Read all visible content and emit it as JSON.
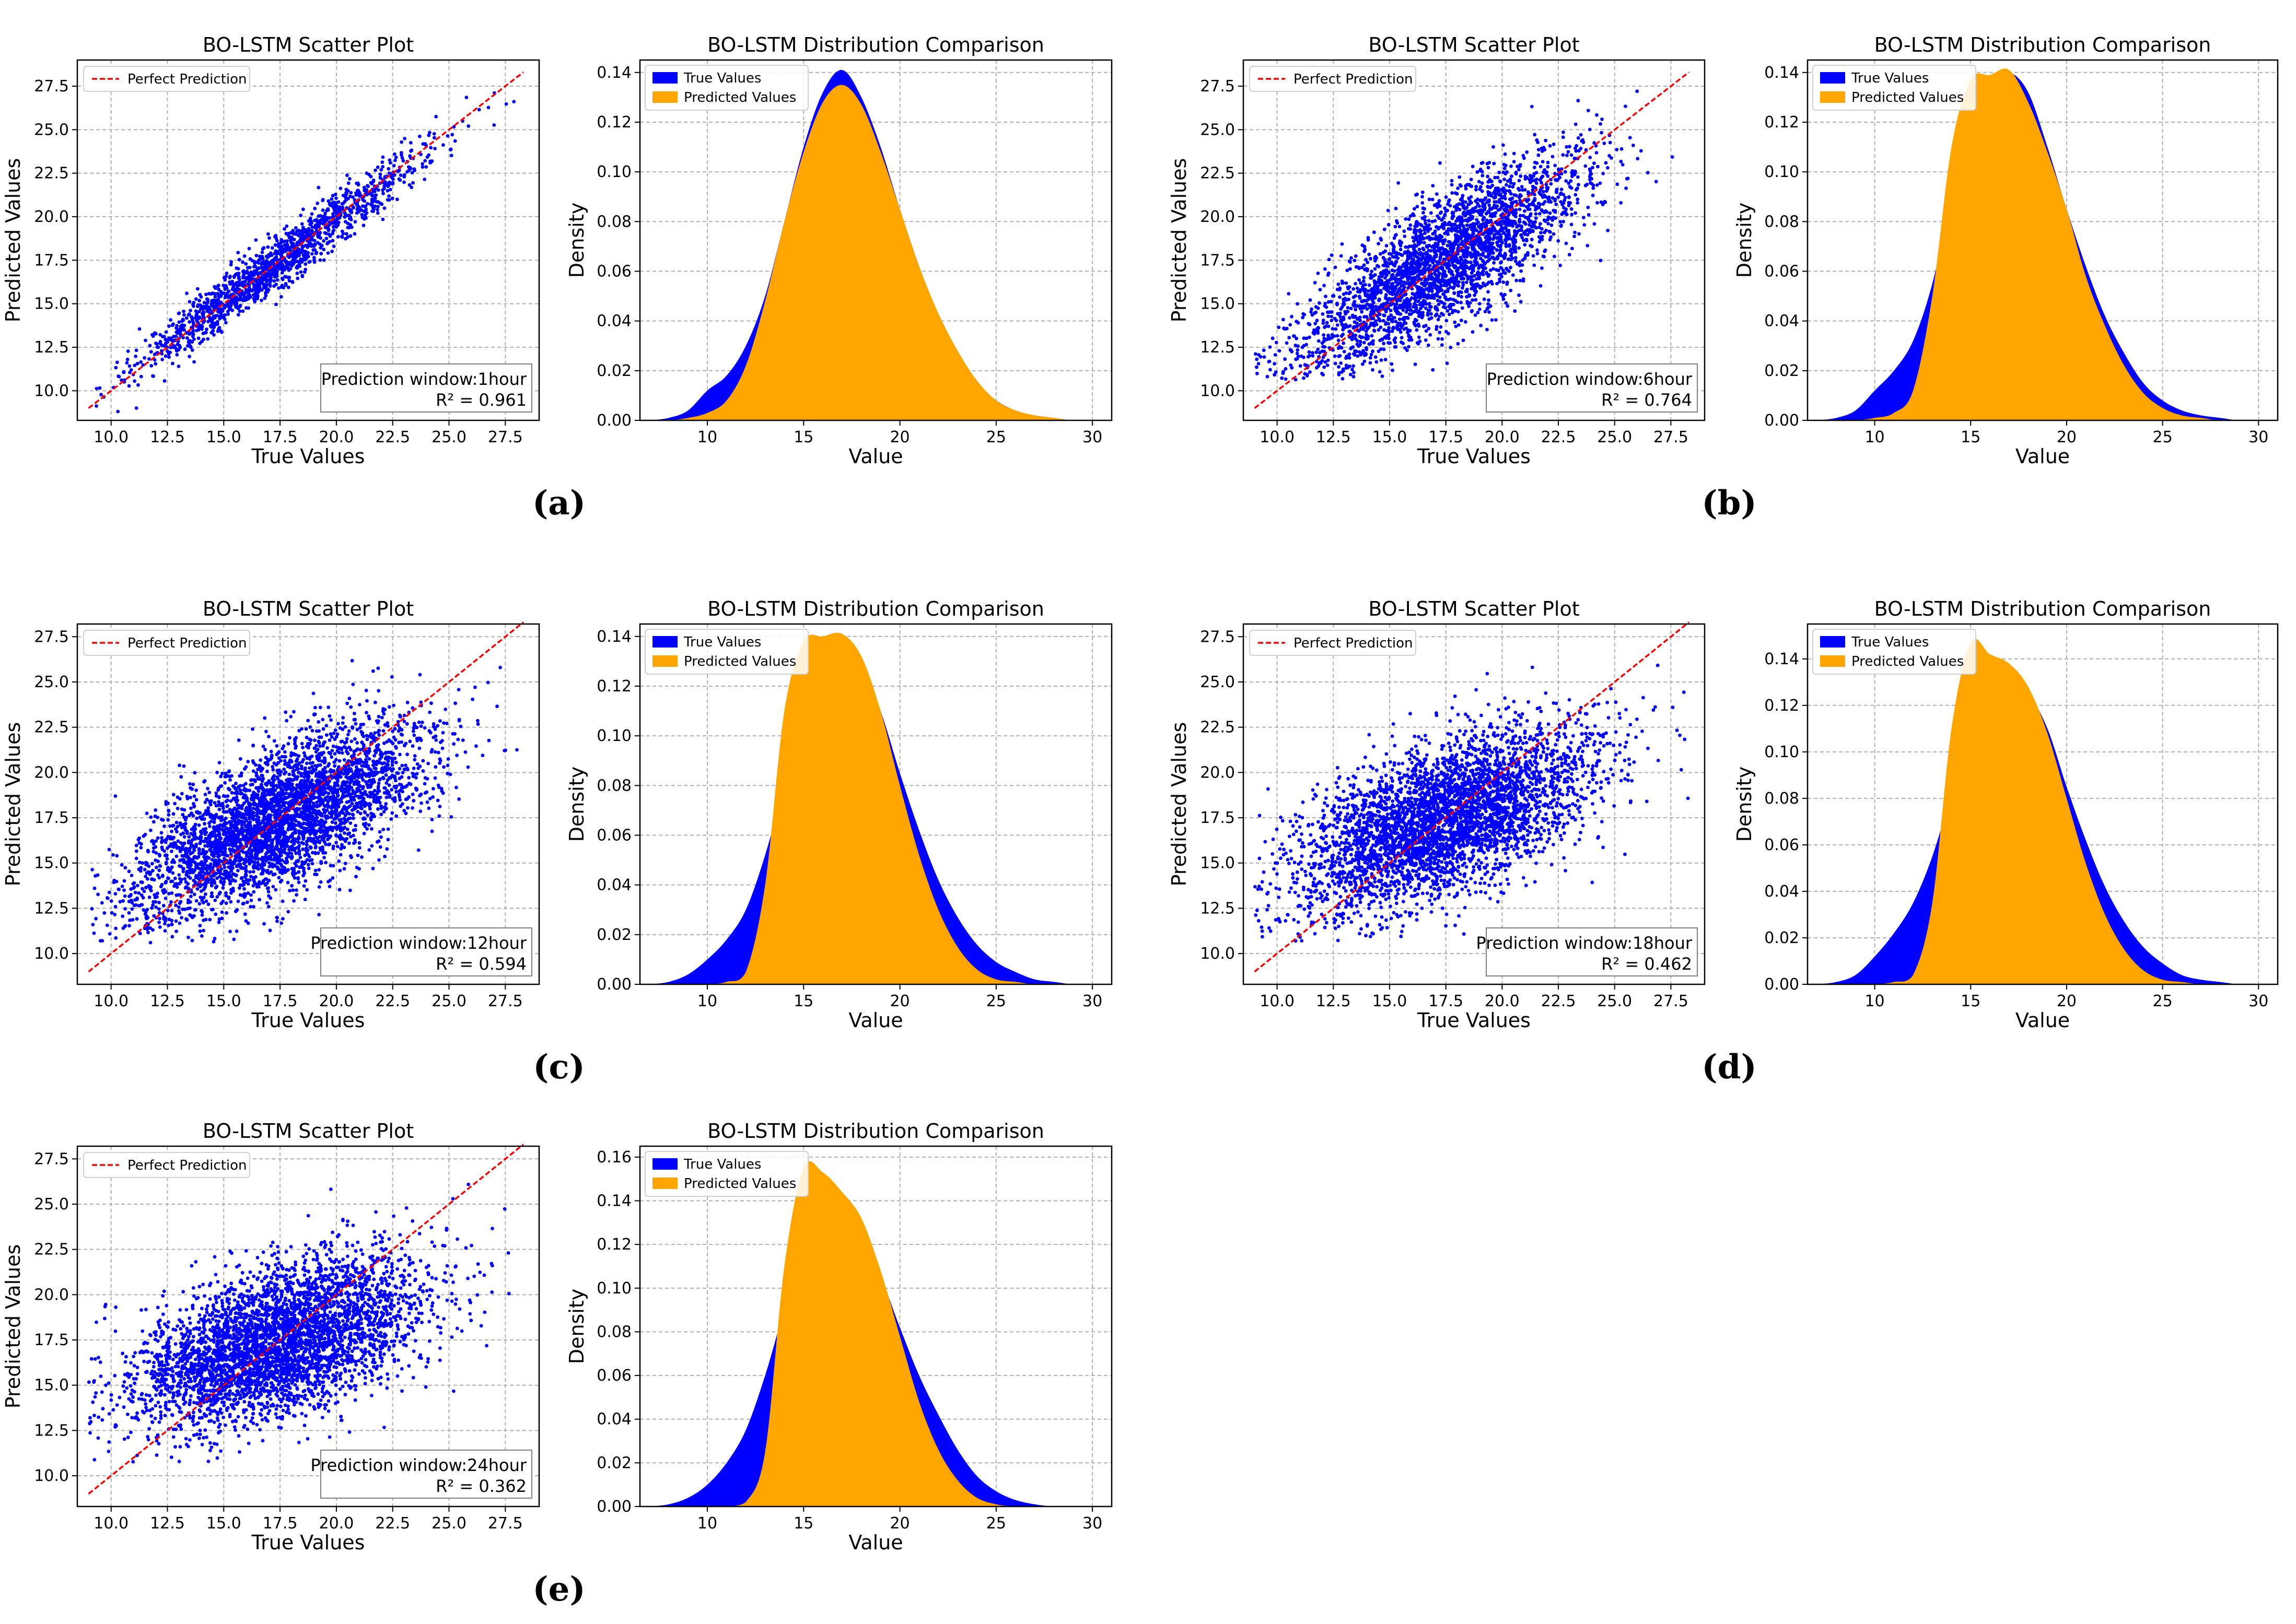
{
  "colors": {
    "scatter": "#0000ff",
    "perfect_line": "#ff0000",
    "true_fill": "#0000ff",
    "pred_fill": "#ffa500",
    "grid": "#b0b0b0"
  },
  "panel_labels": [
    "(a)",
    "(b)",
    "(c)",
    "(d)",
    "(e)"
  ],
  "chart_data": [
    {
      "panel": "a",
      "type": "scatter",
      "title": "BO-LSTM Scatter Plot",
      "xlabel": "True Values",
      "ylabel": "Predicted Values",
      "xlim": [
        8.5,
        29
      ],
      "ylim": [
        8.3,
        29
      ],
      "xticks": [
        10.0,
        12.5,
        15.0,
        17.5,
        20.0,
        22.5,
        25.0,
        27.5
      ],
      "yticks": [
        10.0,
        12.5,
        15.0,
        17.5,
        20.0,
        22.5,
        25.0,
        27.5
      ],
      "tick_labels": [
        "10.0",
        "12.5",
        "15.0",
        "17.5",
        "20.0",
        "22.5",
        "25.0",
        "27.5"
      ],
      "legend": [
        "Perfect Prediction"
      ],
      "perfect_line": {
        "x": [
          9.0,
          28.3
        ],
        "y": [
          9.0,
          28.3
        ]
      },
      "annotation": {
        "line1": "Prediction window:1hour",
        "line2": "R² = 0.961"
      },
      "r2": 0.961,
      "points": 1500,
      "spread": 0.75,
      "regression_slope": 0.96
    },
    {
      "panel": "a",
      "type": "area",
      "title": "BO-LSTM Distribution Comparison",
      "xlabel": "Value",
      "ylabel": "Density",
      "xlim": [
        6.5,
        31
      ],
      "ylim": [
        0,
        0.145
      ],
      "xticks": [
        10,
        15,
        20,
        25,
        30
      ],
      "xtick_labels": [
        "10",
        "15",
        "20",
        "25",
        "30"
      ],
      "yticks": [
        0.0,
        0.02,
        0.04,
        0.06,
        0.08,
        0.1,
        0.12,
        0.14
      ],
      "ytick_labels": [
        "0.00",
        "0.02",
        "0.04",
        "0.06",
        "0.08",
        "0.10",
        "0.12",
        "0.14"
      ],
      "legend": [
        "True Values",
        "Predicted Values"
      ],
      "series": [
        {
          "name": "True Values",
          "x": [
            7,
            8,
            9,
            10,
            11,
            12,
            13,
            14,
            15,
            16,
            17,
            18,
            19,
            20,
            21,
            22,
            23,
            24,
            25,
            26,
            27,
            28,
            29,
            30
          ],
          "values": [
            0,
            0.001,
            0.004,
            0.012,
            0.018,
            0.03,
            0.05,
            0.08,
            0.11,
            0.132,
            0.141,
            0.13,
            0.11,
            0.085,
            0.062,
            0.042,
            0.026,
            0.015,
            0.008,
            0.004,
            0.002,
            0.001,
            0,
            0
          ]
        },
        {
          "name": "Predicted Values",
          "x": [
            7,
            8,
            9,
            10,
            11,
            12,
            13,
            14,
            15,
            16,
            17,
            18,
            19,
            20,
            21,
            22,
            23,
            24,
            25,
            26,
            27,
            28,
            29,
            30
          ],
          "values": [
            0,
            0,
            0.001,
            0.003,
            0.008,
            0.022,
            0.048,
            0.08,
            0.108,
            0.128,
            0.135,
            0.127,
            0.108,
            0.085,
            0.062,
            0.043,
            0.028,
            0.016,
            0.008,
            0.004,
            0.002,
            0.001,
            0,
            0
          ]
        }
      ]
    },
    {
      "panel": "b",
      "type": "scatter",
      "title": "BO-LSTM Scatter Plot",
      "xlabel": "True Values",
      "ylabel": "Predicted Values",
      "xlim": [
        8.5,
        29
      ],
      "ylim": [
        8.3,
        29
      ],
      "xticks": [
        10.0,
        12.5,
        15.0,
        17.5,
        20.0,
        22.5,
        25.0,
        27.5
      ],
      "yticks": [
        10.0,
        12.5,
        15.0,
        17.5,
        20.0,
        22.5,
        25.0,
        27.5
      ],
      "tick_labels": [
        "10.0",
        "12.5",
        "15.0",
        "17.5",
        "20.0",
        "22.5",
        "25.0",
        "27.5"
      ],
      "legend": [
        "Perfect Prediction"
      ],
      "perfect_line": {
        "x": [
          9.0,
          28.3
        ],
        "y": [
          9.0,
          28.3
        ]
      },
      "annotation": {
        "line1": "Prediction window:6hour",
        "line2": "R² = 0.764"
      },
      "r2": 0.764,
      "points": 3000,
      "spread": 1.8,
      "regression_slope": 0.78
    },
    {
      "panel": "b",
      "type": "area",
      "title": "BO-LSTM Distribution Comparison",
      "xlabel": "Value",
      "ylabel": "Density",
      "xlim": [
        6.5,
        31
      ],
      "ylim": [
        0,
        0.145
      ],
      "xticks": [
        10,
        15,
        20,
        25,
        30
      ],
      "xtick_labels": [
        "10",
        "15",
        "20",
        "25",
        "30"
      ],
      "yticks": [
        0.0,
        0.02,
        0.04,
        0.06,
        0.08,
        0.1,
        0.12,
        0.14
      ],
      "ytick_labels": [
        "0.00",
        "0.02",
        "0.04",
        "0.06",
        "0.08",
        "0.10",
        "0.12",
        "0.14"
      ],
      "legend": [
        "True Values",
        "Predicted Values"
      ],
      "series": [
        {
          "name": "True Values",
          "x": [
            7,
            8,
            9,
            10,
            11,
            12,
            13,
            14,
            15,
            16,
            17,
            18,
            19,
            20,
            21,
            22,
            23,
            24,
            25,
            26,
            27,
            28,
            29,
            30
          ],
          "values": [
            0,
            0.001,
            0.004,
            0.012,
            0.02,
            0.032,
            0.055,
            0.09,
            0.122,
            0.136,
            0.14,
            0.132,
            0.11,
            0.085,
            0.062,
            0.042,
            0.027,
            0.015,
            0.008,
            0.004,
            0.002,
            0.001,
            0,
            0
          ]
        },
        {
          "name": "Predicted Values",
          "x": [
            7,
            8,
            9,
            10,
            11,
            12,
            13,
            14,
            15,
            16,
            17,
            18,
            19,
            20,
            21,
            22,
            23,
            24,
            25,
            26,
            27,
            28,
            29,
            30
          ],
          "values": [
            0,
            0,
            0,
            0.001,
            0.003,
            0.012,
            0.05,
            0.11,
            0.137,
            0.139,
            0.141,
            0.128,
            0.108,
            0.085,
            0.058,
            0.038,
            0.022,
            0.011,
            0.005,
            0.002,
            0.001,
            0,
            0,
            0
          ]
        }
      ]
    },
    {
      "panel": "c",
      "type": "scatter",
      "title": "BO-LSTM Scatter Plot",
      "xlabel": "True Values",
      "ylabel": "Predicted Values",
      "xlim": [
        8.5,
        29
      ],
      "ylim": [
        8.3,
        28.2
      ],
      "xticks": [
        10.0,
        12.5,
        15.0,
        17.5,
        20.0,
        22.5,
        25.0,
        27.5
      ],
      "yticks": [
        10.0,
        12.5,
        15.0,
        17.5,
        20.0,
        22.5,
        25.0,
        27.5
      ],
      "tick_labels": [
        "10.0",
        "12.5",
        "15.0",
        "17.5",
        "20.0",
        "22.5",
        "25.0",
        "27.5"
      ],
      "legend": [
        "Perfect Prediction"
      ],
      "perfect_line": {
        "x": [
          9.0,
          28.3
        ],
        "y": [
          9.0,
          28.3
        ]
      },
      "annotation": {
        "line1": "Prediction window:12hour",
        "line2": "R² = 0.594"
      },
      "r2": 0.594,
      "points": 4000,
      "spread": 1.9,
      "regression_slope": 0.55
    },
    {
      "panel": "c",
      "type": "area",
      "title": "BO-LSTM Distribution Comparison",
      "xlabel": "Value",
      "ylabel": "Density",
      "xlim": [
        6.5,
        31
      ],
      "ylim": [
        0,
        0.145
      ],
      "xticks": [
        10,
        15,
        20,
        25,
        30
      ],
      "xtick_labels": [
        "10",
        "15",
        "20",
        "25",
        "30"
      ],
      "yticks": [
        0.0,
        0.02,
        0.04,
        0.06,
        0.08,
        0.1,
        0.12,
        0.14
      ],
      "ytick_labels": [
        "0.00",
        "0.02",
        "0.04",
        "0.06",
        "0.08",
        "0.10",
        "0.12",
        "0.14"
      ],
      "legend": [
        "True Values",
        "Predicted Values"
      ],
      "series": [
        {
          "name": "True Values",
          "x": [
            7,
            8,
            9,
            10,
            11,
            12,
            13,
            14,
            15,
            16,
            17,
            18,
            19,
            20,
            21,
            22,
            23,
            24,
            25,
            26,
            27,
            28,
            29,
            30
          ],
          "values": [
            0,
            0.001,
            0.004,
            0.01,
            0.018,
            0.03,
            0.052,
            0.08,
            0.108,
            0.128,
            0.135,
            0.128,
            0.11,
            0.085,
            0.062,
            0.042,
            0.027,
            0.016,
            0.009,
            0.005,
            0.002,
            0.001,
            0,
            0
          ]
        },
        {
          "name": "Predicted Values",
          "x": [
            7,
            8,
            9,
            10,
            11,
            12,
            13,
            14,
            15,
            16,
            17,
            18,
            19,
            20,
            21,
            22,
            23,
            24,
            25,
            26,
            27,
            28,
            29,
            30
          ],
          "values": [
            0,
            0,
            0,
            0,
            0.001,
            0.005,
            0.04,
            0.11,
            0.138,
            0.14,
            0.141,
            0.132,
            0.11,
            0.08,
            0.052,
            0.03,
            0.015,
            0.006,
            0.002,
            0.001,
            0,
            0,
            0,
            0
          ]
        }
      ]
    },
    {
      "panel": "d",
      "type": "scatter",
      "title": "BO-LSTM Scatter Plot",
      "xlabel": "True Values",
      "ylabel": "Predicted Values",
      "xlim": [
        8.5,
        29
      ],
      "ylim": [
        8.3,
        28.2
      ],
      "xticks": [
        10.0,
        12.5,
        15.0,
        17.5,
        20.0,
        22.5,
        25.0,
        27.5
      ],
      "yticks": [
        10.0,
        12.5,
        15.0,
        17.5,
        20.0,
        22.5,
        25.0,
        27.5
      ],
      "tick_labels": [
        "10.0",
        "12.5",
        "15.0",
        "17.5",
        "20.0",
        "22.5",
        "25.0",
        "27.5"
      ],
      "legend": [
        "Perfect Prediction"
      ],
      "perfect_line": {
        "x": [
          9.0,
          28.3
        ],
        "y": [
          9.0,
          28.3
        ]
      },
      "annotation": {
        "line1": "Prediction window:18hour",
        "line2": "R² = 0.462"
      },
      "r2": 0.462,
      "points": 4000,
      "spread": 2.0,
      "regression_slope": 0.45
    },
    {
      "panel": "d",
      "type": "area",
      "title": "BO-LSTM Distribution Comparison",
      "xlabel": "Value",
      "ylabel": "Density",
      "xlim": [
        6.5,
        31
      ],
      "ylim": [
        0,
        0.155
      ],
      "xticks": [
        10,
        15,
        20,
        25,
        30
      ],
      "xtick_labels": [
        "10",
        "15",
        "20",
        "25",
        "30"
      ],
      "yticks": [
        0.0,
        0.02,
        0.04,
        0.06,
        0.08,
        0.1,
        0.12,
        0.14
      ],
      "ytick_labels": [
        "0.00",
        "0.02",
        "0.04",
        "0.06",
        "0.08",
        "0.10",
        "0.12",
        "0.14"
      ],
      "legend": [
        "True Values",
        "Predicted Values"
      ],
      "series": [
        {
          "name": "True Values",
          "x": [
            7,
            8,
            9,
            10,
            11,
            12,
            13,
            14,
            15,
            16,
            17,
            18,
            19,
            20,
            21,
            22,
            23,
            24,
            25,
            26,
            27,
            28,
            29,
            30
          ],
          "values": [
            0,
            0.001,
            0.004,
            0.012,
            0.022,
            0.035,
            0.055,
            0.082,
            0.108,
            0.125,
            0.13,
            0.125,
            0.11,
            0.085,
            0.062,
            0.042,
            0.027,
            0.016,
            0.009,
            0.004,
            0.002,
            0.001,
            0,
            0
          ]
        },
        {
          "name": "Predicted Values",
          "x": [
            7,
            8,
            9,
            10,
            11,
            12,
            13,
            14,
            15,
            16,
            17,
            18,
            19,
            20,
            21,
            22,
            23,
            24,
            25,
            26,
            27,
            28,
            29,
            30
          ],
          "values": [
            0,
            0,
            0,
            0,
            0.001,
            0.004,
            0.035,
            0.11,
            0.147,
            0.142,
            0.138,
            0.128,
            0.108,
            0.08,
            0.052,
            0.03,
            0.015,
            0.006,
            0.002,
            0.001,
            0,
            0,
            0,
            0
          ]
        }
      ]
    },
    {
      "panel": "e",
      "type": "scatter",
      "title": "BO-LSTM Scatter Plot",
      "xlabel": "True Values",
      "ylabel": "Predicted Values",
      "xlim": [
        8.5,
        29
      ],
      "ylim": [
        8.3,
        28.2
      ],
      "xticks": [
        10.0,
        12.5,
        15.0,
        17.5,
        20.0,
        22.5,
        25.0,
        27.5
      ],
      "yticks": [
        10.0,
        12.5,
        15.0,
        17.5,
        20.0,
        22.5,
        25.0,
        27.5
      ],
      "tick_labels": [
        "10.0",
        "12.5",
        "15.0",
        "17.5",
        "20.0",
        "22.5",
        "25.0",
        "27.5"
      ],
      "legend": [
        "Perfect Prediction"
      ],
      "perfect_line": {
        "x": [
          9.0,
          28.3
        ],
        "y": [
          9.0,
          28.3
        ]
      },
      "annotation": {
        "line1": "Prediction window:24hour",
        "line2": "R² = 0.362"
      },
      "r2": 0.362,
      "points": 4000,
      "spread": 2.0,
      "regression_slope": 0.36
    },
    {
      "panel": "e",
      "type": "area",
      "title": "BO-LSTM Distribution Comparison",
      "xlabel": "Value",
      "ylabel": "Density",
      "xlim": [
        6.5,
        31
      ],
      "ylim": [
        0,
        0.165
      ],
      "xticks": [
        10,
        15,
        20,
        25,
        30
      ],
      "xtick_labels": [
        "10",
        "15",
        "20",
        "25",
        "30"
      ],
      "yticks": [
        0.0,
        0.02,
        0.04,
        0.06,
        0.08,
        0.1,
        0.12,
        0.14,
        0.16
      ],
      "ytick_labels": [
        "0.00",
        "0.02",
        "0.04",
        "0.06",
        "0.08",
        "0.10",
        "0.12",
        "0.14",
        "0.16"
      ],
      "legend": [
        "True Values",
        "Predicted Values"
      ],
      "series": [
        {
          "name": "True Values",
          "x": [
            7,
            8,
            9,
            10,
            11,
            12,
            13,
            14,
            15,
            16,
            17,
            18,
            19,
            20,
            21,
            22,
            23,
            24,
            25,
            26,
            27,
            28,
            29,
            30
          ],
          "values": [
            0,
            0.001,
            0.004,
            0.01,
            0.02,
            0.035,
            0.06,
            0.09,
            0.115,
            0.128,
            0.13,
            0.12,
            0.105,
            0.082,
            0.06,
            0.042,
            0.026,
            0.014,
            0.007,
            0.003,
            0.001,
            0,
            0,
            0
          ]
        },
        {
          "name": "Predicted Values",
          "x": [
            7,
            8,
            9,
            10,
            11,
            12,
            13,
            14,
            15,
            16,
            17,
            18,
            19,
            20,
            21,
            22,
            23,
            24,
            25,
            26,
            27,
            28,
            29,
            30
          ],
          "values": [
            0,
            0,
            0,
            0,
            0,
            0.002,
            0.025,
            0.11,
            0.155,
            0.153,
            0.144,
            0.132,
            0.108,
            0.078,
            0.048,
            0.026,
            0.012,
            0.004,
            0.001,
            0,
            0,
            0,
            0,
            0
          ]
        }
      ]
    }
  ]
}
